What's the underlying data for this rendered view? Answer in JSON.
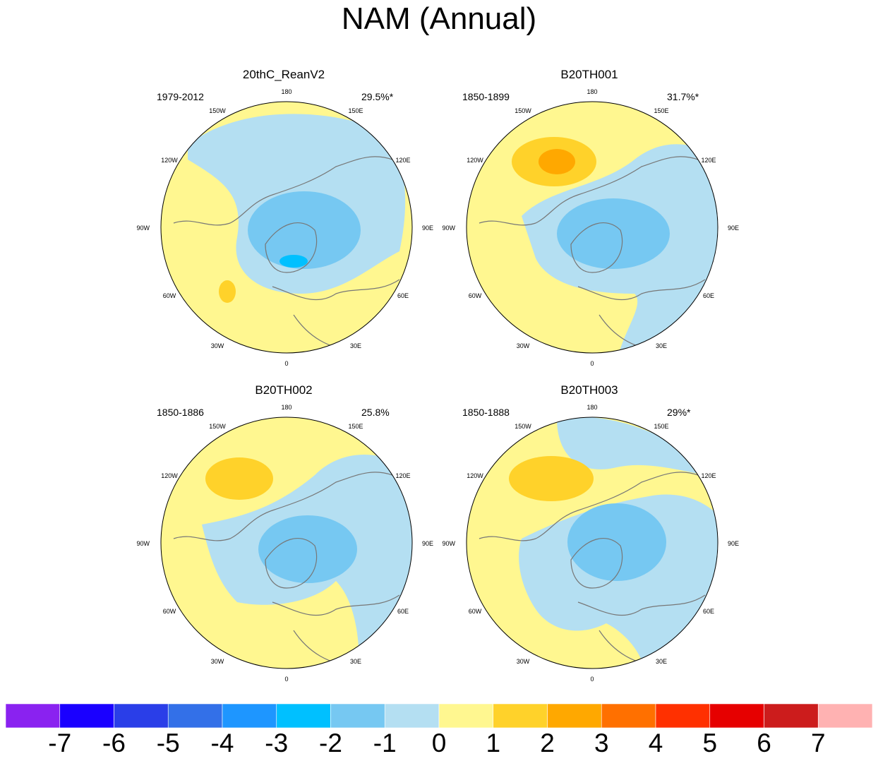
{
  "title": "NAM (Annual)",
  "panels": [
    {
      "name": "20thC_ReanV2",
      "period": "1979-2012",
      "variance": "29.5%*"
    },
    {
      "name": "B20TH001",
      "period": "1850-1899",
      "variance": "31.7%*"
    },
    {
      "name": "B20TH002",
      "period": "1850-1886",
      "variance": "25.8%"
    },
    {
      "name": "B20TH003",
      "period": "1850-1888",
      "variance": "29%*"
    }
  ],
  "longitude_labels": [
    "180",
    "150E",
    "120E",
    "90E",
    "60E",
    "30E",
    "0",
    "30W",
    "60W",
    "90W",
    "120W",
    "150W"
  ],
  "colorbar": {
    "labels": [
      "-7",
      "-6",
      "-5",
      "-4",
      "-3",
      "-2",
      "-1",
      "0",
      "1",
      "2",
      "3",
      "4",
      "5",
      "6",
      "7"
    ],
    "colors": [
      "#8a22f0",
      "#1a00ff",
      "#2a3ee8",
      "#3370e8",
      "#1e96ff",
      "#00c0ff",
      "#76c8f2",
      "#b4dff2",
      "#fff790",
      "#ffd22a",
      "#ffa800",
      "#ff7000",
      "#ff3000",
      "#e60000",
      "#cc1c1c",
      "#ffb2b2"
    ]
  }
}
